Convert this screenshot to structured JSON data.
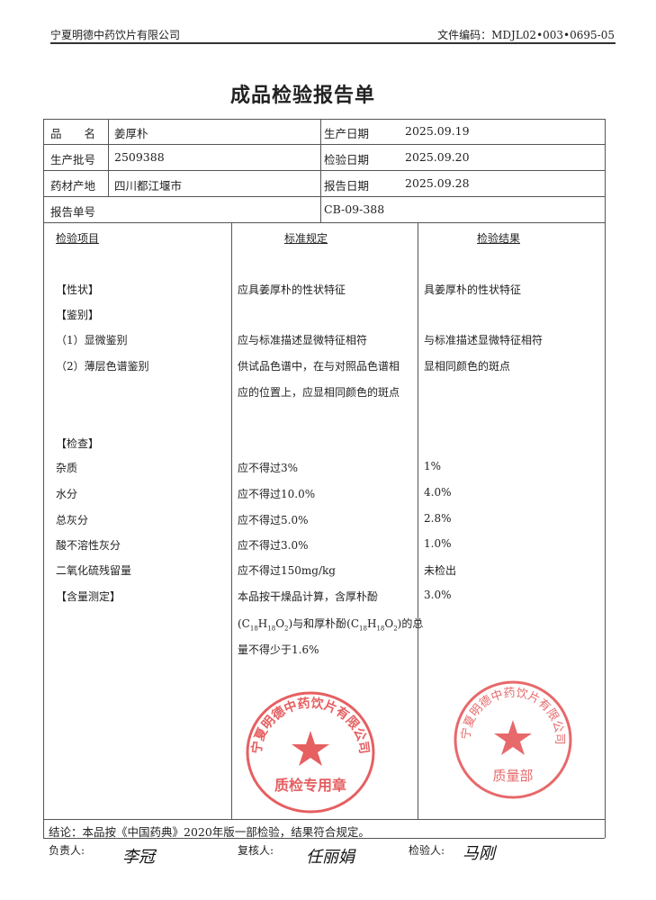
{
  "header": {
    "company": "宁夏明德中药饮片有限公司",
    "doc_code": "文件编码：MDJL02•003•0695-05"
  },
  "title": "成品检验报告单",
  "info": {
    "name_label": "品　　名",
    "name": "姜厚朴",
    "batch_label": "生产批号",
    "batch": "2509388",
    "origin_label": "药材产地",
    "origin": "四川都江堰市",
    "report_no_label": "报告单号",
    "report_no": "CB-09-388",
    "prod_date_label": "生产日期",
    "prod_date": "2025.09.19",
    "test_date_label": "检验日期",
    "test_date": "2025.09.20",
    "report_date_label": "报告日期",
    "report_date": "2025.09.28"
  },
  "columns": {
    "item": "检验项目",
    "standard": "标准规定",
    "result": "检验结果"
  },
  "rows": [
    {
      "item": "【性状】",
      "standard": "应具姜厚朴的性状特征",
      "result": "具姜厚朴的性状特征"
    },
    {
      "item": "【鉴别】",
      "standard": "",
      "result": ""
    },
    {
      "item": "（1）显微鉴别",
      "standard": "应与标准描述显微特征相符",
      "result": "与标准描述显微特征相符"
    },
    {
      "item": "（2）薄层色谱鉴别",
      "standard": "供试品色谱中，在与对照品色谱相",
      "result": "显相同颜色的斑点"
    },
    {
      "item": "",
      "standard": "应的位置上，应显相同颜色的斑点",
      "result": ""
    },
    {
      "item": "【检查】",
      "standard": "",
      "result": ""
    },
    {
      "item": "杂质",
      "standard": "应不得过3%",
      "result": "1%"
    },
    {
      "item": "水分",
      "standard": "应不得过10.0%",
      "result": "4.0%"
    },
    {
      "item": "总灰分",
      "standard": "应不得过5.0%",
      "result": "2.8%"
    },
    {
      "item": "酸不溶性灰分",
      "standard": "应不得过3.0%",
      "result": "1.0%"
    },
    {
      "item": "二氧化硫残留量",
      "standard": "应不得过150mg/kg",
      "result": "未检出"
    },
    {
      "item": "【含量测定】",
      "standard": "本品按干燥品计算，含厚朴酚",
      "result": "3.0%"
    }
  ],
  "assay_line2": {
    "a": "(C",
    "a1": "18",
    "a2": "H",
    "a3": "18",
    "a4": "O",
    "a5": "2",
    "b": ")与和厚朴酚(C",
    "b1": "18",
    "b2": "H",
    "b3": "18",
    "b4": "O",
    "b5": "2",
    "c": ")的总"
  },
  "assay_line3": "量不得少于1.6%",
  "conclusion": "结论：本品按《中国药典》2020年版一部检验，结果符合规定。",
  "signatures": {
    "responsible_label": "负责人:",
    "responsible": "李冠",
    "reviewer_label": "复核人:",
    "reviewer": "任丽娟",
    "inspector_label": "检验人:",
    "inspector": "马刚"
  },
  "stamps": {
    "top": {
      "text": "宁夏明德中药饮片有限公司",
      "dept": "质量部"
    },
    "bottom": {
      "text": "宁夏明德中药饮片有限公司",
      "dept": "质检专用章"
    }
  },
  "colors": {
    "stamp": "#e0383a"
  }
}
